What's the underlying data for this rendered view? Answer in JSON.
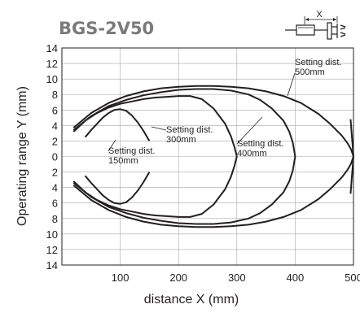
{
  "chart_data": {
    "type": "line",
    "title": "BGS-2V50",
    "xlabel": "distance X (mm)",
    "ylabel": "Operating range Y (mm)",
    "xlim": [
      0,
      500
    ],
    "ylim": [
      -14,
      14
    ],
    "xticks": [
      "100",
      "200",
      "300",
      "400",
      "500"
    ],
    "yticks": [
      "14",
      "12",
      "10",
      "8",
      "6",
      "4",
      "2",
      "0",
      "2",
      "4",
      "6",
      "8",
      "10",
      "12",
      "14"
    ],
    "grid": true,
    "series": [
      {
        "name": "Setting dist. 150mm",
        "x": [
          40,
          50,
          60,
          70,
          80,
          90,
          100,
          110,
          120,
          130,
          140,
          150
        ],
        "y": [
          2.5,
          3.4,
          4.2,
          5,
          5.6,
          6,
          6.1,
          5.9,
          5.3,
          4.4,
          3.3,
          2
        ]
      },
      {
        "name": "Setting dist. 300mm",
        "x": [
          20,
          40,
          60,
          80,
          100,
          120,
          140,
          160,
          180,
          200,
          220,
          240,
          260,
          280,
          290,
          296,
          300
        ],
        "y": [
          3.2,
          4.6,
          5.6,
          6.3,
          6.8,
          7.1,
          7.4,
          7.6,
          7.7,
          7.8,
          7.8,
          7.4,
          6.2,
          4.2,
          2.6,
          1.2,
          0
        ]
      },
      {
        "name": "Setting dist. 400mm",
        "x": [
          20,
          50,
          80,
          110,
          140,
          170,
          200,
          230,
          260,
          290,
          320,
          340,
          360,
          380,
          390,
          396,
          400
        ],
        "y": [
          3.4,
          5.2,
          6.5,
          7.3,
          7.9,
          8.3,
          8.6,
          8.7,
          8.7,
          8.5,
          8,
          7.3,
          6.2,
          4.6,
          3.2,
          1.8,
          0
        ]
      },
      {
        "name": "Setting dist. 500mm",
        "x": [
          20,
          50,
          80,
          110,
          140,
          170,
          200,
          230,
          260,
          290,
          320,
          350,
          380,
          410,
          440,
          460,
          480,
          490,
          496,
          500
        ],
        "y": [
          3.7,
          5.6,
          6.9,
          7.8,
          8.4,
          8.8,
          9,
          9.1,
          9.1,
          9,
          8.8,
          8.4,
          7.8,
          6.9,
          5.5,
          4.2,
          2.7,
          1.7,
          0.9,
          0
        ]
      }
    ],
    "annotations": [
      {
        "lines": [
          "Setting dist.",
          "150mm"
        ]
      },
      {
        "lines": [
          "Setting dist.",
          "300mm"
        ]
      },
      {
        "lines": [
          "Setting dist.",
          "400mm"
        ]
      },
      {
        "lines": [
          "Setting dist.",
          "500mm"
        ]
      }
    ],
    "diagram": {
      "label": "X"
    }
  }
}
